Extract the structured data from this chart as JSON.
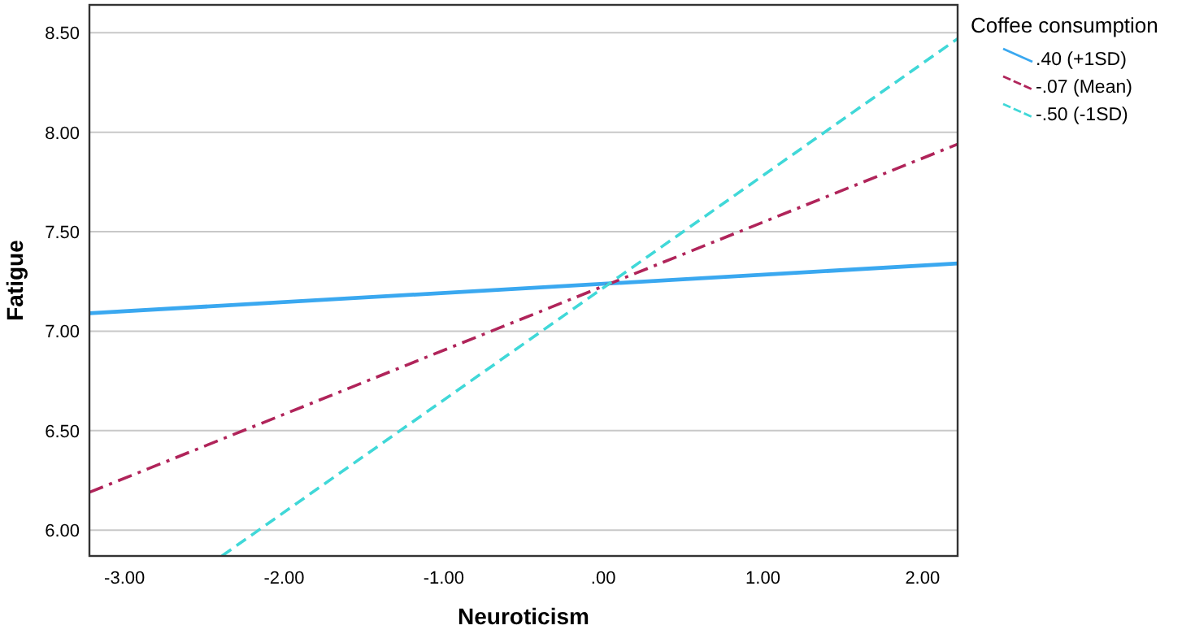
{
  "chart_data": {
    "type": "line",
    "xlabel": "Neuroticism",
    "ylabel": "Fatigue",
    "legend_title": "Coffee consumption",
    "legend": "top right",
    "grid": "y",
    "xlim": [
      -3.22,
      2.22
    ],
    "xticks": [
      {
        "value": -3,
        "label": "-3.00"
      },
      {
        "value": -2,
        "label": "-2.00"
      },
      {
        "value": -1,
        "label": "-1.00"
      },
      {
        "value": 0,
        "label": ".00"
      },
      {
        "value": 1,
        "label": "1.00"
      },
      {
        "value": 2,
        "label": "2.00"
      }
    ],
    "ylim": [
      5.87,
      8.64
    ],
    "yticks": [
      {
        "value": 6,
        "label": "6.00"
      },
      {
        "value": 6.5,
        "label": "6.50"
      },
      {
        "value": 7,
        "label": "7.00"
      },
      {
        "value": 7.5,
        "label": "7.50"
      },
      {
        "value": 8,
        "label": "8.00"
      },
      {
        "value": 8.5,
        "label": "8.50"
      }
    ],
    "series": [
      {
        "name": ".40 (+1SD)",
        "color": "#3aa8f0",
        "line_style": "solid",
        "x": [
          -3.22,
          2.22
        ],
        "values": [
          7.09,
          7.34
        ]
      },
      {
        "name": "-.07 (Mean)",
        "color": "#b0245a",
        "line_style": "dashdot",
        "x": [
          -3.22,
          2.22
        ],
        "values": [
          6.19,
          7.94
        ]
      },
      {
        "name": "-.50 (-1SD)",
        "color": "#40d8d8",
        "line_style": "dashed",
        "x": [
          -2.39,
          2.22
        ],
        "values": [
          5.87,
          8.47
        ]
      }
    ]
  }
}
